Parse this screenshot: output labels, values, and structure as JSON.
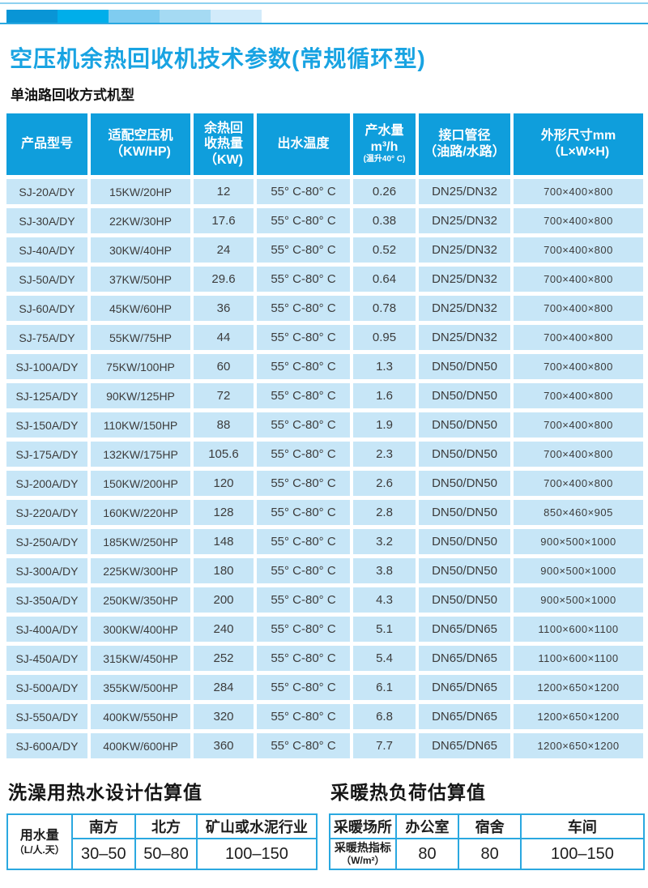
{
  "page": {
    "title": "空压机余热回收机技术参数(常规循环型)",
    "subtitle": "单油路回收方式机型"
  },
  "colors": {
    "header_blue": "#0f9edc",
    "cell_blue": "#c7e6f7",
    "title_blue": "#18a3e2",
    "border_blue": "#2aa8e0",
    "topline_blue": "#8ed1f0",
    "bar_segments": [
      "#0995d6",
      "#00aeea",
      "#7fccf0",
      "#a5daf3",
      "#d2ebfa"
    ]
  },
  "main_table": {
    "headers": [
      {
        "lines": [
          "产品型号"
        ],
        "small": []
      },
      {
        "lines": [
          "适配空压机",
          "（KW/HP)"
        ],
        "small": []
      },
      {
        "lines": [
          "余热回",
          "收热量",
          "（KW)"
        ],
        "small": []
      },
      {
        "lines": [
          "出水温度"
        ],
        "small": []
      },
      {
        "lines": [
          "产水量",
          "m³/h",
          "(温升40° C)"
        ],
        "small": [
          2
        ]
      },
      {
        "lines": [
          "接口管径",
          "（油路/水路）"
        ],
        "small": []
      },
      {
        "lines": [
          "外形尺寸mm",
          "（L×W×H)"
        ],
        "small": []
      }
    ],
    "rows": [
      [
        "SJ-20A/DY",
        "15KW/20HP",
        "12",
        "55° C-80° C",
        "0.26",
        "DN25/DN32",
        "700×400×800"
      ],
      [
        "SJ-30A/DY",
        "22KW/30HP",
        "17.6",
        "55° C-80° C",
        "0.38",
        "DN25/DN32",
        "700×400×800"
      ],
      [
        "SJ-40A/DY",
        "30KW/40HP",
        "24",
        "55° C-80° C",
        "0.52",
        "DN25/DN32",
        "700×400×800"
      ],
      [
        "SJ-50A/DY",
        "37KW/50HP",
        "29.6",
        "55° C-80° C",
        "0.64",
        "DN25/DN32",
        "700×400×800"
      ],
      [
        "SJ-60A/DY",
        "45KW/60HP",
        "36",
        "55° C-80° C",
        "0.78",
        "DN25/DN32",
        "700×400×800"
      ],
      [
        "SJ-75A/DY",
        "55KW/75HP",
        "44",
        "55° C-80° C",
        "0.95",
        "DN25/DN32",
        "700×400×800"
      ],
      [
        "SJ-100A/DY",
        "75KW/100HP",
        "60",
        "55° C-80° C",
        "1.3",
        "DN50/DN50",
        "700×400×800"
      ],
      [
        "SJ-125A/DY",
        "90KW/125HP",
        "72",
        "55° C-80° C",
        "1.6",
        "DN50/DN50",
        "700×400×800"
      ],
      [
        "SJ-150A/DY",
        "110KW/150HP",
        "88",
        "55° C-80° C",
        "1.9",
        "DN50/DN50",
        "700×400×800"
      ],
      [
        "SJ-175A/DY",
        "132KW/175HP",
        "105.6",
        "55° C-80° C",
        "2.3",
        "DN50/DN50",
        "700×400×800"
      ],
      [
        "SJ-200A/DY",
        "150KW/200HP",
        "120",
        "55° C-80° C",
        "2.6",
        "DN50/DN50",
        "700×400×800"
      ],
      [
        "SJ-220A/DY",
        "160KW/220HP",
        "128",
        "55° C-80° C",
        "2.8",
        "DN50/DN50",
        "850×460×905"
      ],
      [
        "SJ-250A/DY",
        "185KW/250HP",
        "148",
        "55° C-80° C",
        "3.2",
        "DN50/DN50",
        "900×500×1000"
      ],
      [
        "SJ-300A/DY",
        "225KW/300HP",
        "180",
        "55° C-80° C",
        "3.8",
        "DN50/DN50",
        "900×500×1000"
      ],
      [
        "SJ-350A/DY",
        "250KW/350HP",
        "200",
        "55° C-80° C",
        "4.3",
        "DN50/DN50",
        "900×500×1000"
      ],
      [
        "SJ-400A/DY",
        "300KW/400HP",
        "240",
        "55° C-80° C",
        "5.1",
        "DN65/DN65",
        "1100×600×1100"
      ],
      [
        "SJ-450A/DY",
        "315KW/450HP",
        "252",
        "55° C-80° C",
        "5.4",
        "DN65/DN65",
        "1100×600×1100"
      ],
      [
        "SJ-500A/DY",
        "355KW/500HP",
        "284",
        "55° C-80° C",
        "6.1",
        "DN65/DN65",
        "1200×650×1200"
      ],
      [
        "SJ-550A/DY",
        "400KW/550HP",
        "320",
        "55° C-80° C",
        "6.8",
        "DN65/DN65",
        "1200×650×1200"
      ],
      [
        "SJ-600A/DY",
        "400KW/600HP",
        "360",
        "55° C-80° C",
        "7.7",
        "DN65/DN65",
        "1200×650×1200"
      ]
    ]
  },
  "bathing_table": {
    "title": "洗澡用热水设计估算值",
    "row_label": [
      "用水量",
      "（L/人.天）"
    ],
    "columns": [
      "南方",
      "北方",
      "矿山或水泥行业"
    ],
    "values": [
      "30–50",
      "50–80",
      "100–150"
    ]
  },
  "heating_table": {
    "title": "采暖热负荷估算值",
    "header_label": "采暖场所",
    "columns": [
      "办公室",
      "宿舍",
      "车间"
    ],
    "row_label": [
      "采暖热指标",
      "（W/m²）"
    ],
    "values": [
      "80",
      "80",
      "100–150"
    ]
  }
}
